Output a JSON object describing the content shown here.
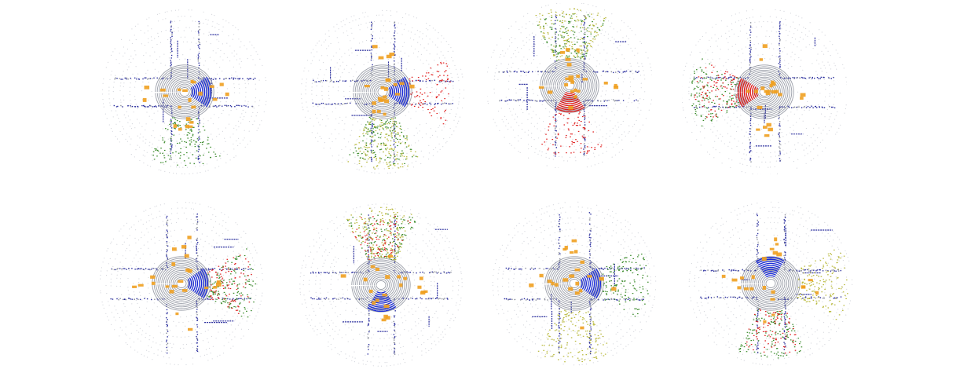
{
  "figure": {
    "palette": {
      "ground": "#b8bcc4",
      "ring": "#8a8e9a",
      "building": "#2b2f9e",
      "road_edge": "#3a3fc0",
      "vegetation": "#3a8a2a",
      "terrain": "#b8b83a",
      "vehicle": "#f0a020",
      "object": "#e02020"
    },
    "scans": [
      {
        "id": "scan-1",
        "accent": "blue",
        "accent_side": "east",
        "cross": true,
        "vegetation": "south",
        "terrain": "none",
        "red": "none"
      },
      {
        "id": "scan-2",
        "accent": "blue",
        "accent_side": "east",
        "cross": true,
        "vegetation": "south",
        "terrain": "south",
        "red": "east"
      },
      {
        "id": "scan-3",
        "accent": "red",
        "accent_side": "south",
        "cross": true,
        "vegetation": "north",
        "terrain": "north",
        "red": "south"
      },
      {
        "id": "scan-4",
        "accent": "red",
        "accent_side": "west",
        "cross": true,
        "vegetation": "west",
        "terrain": "none",
        "red": "west"
      },
      {
        "id": "scan-5",
        "accent": "blue",
        "accent_side": "east",
        "cross": true,
        "vegetation": "east",
        "terrain": "none",
        "red": "east"
      },
      {
        "id": "scan-6",
        "accent": "blue",
        "accent_side": "south",
        "cross": true,
        "vegetation": "north",
        "terrain": "north",
        "red": "north"
      },
      {
        "id": "scan-7",
        "accent": "blue",
        "accent_side": "east",
        "cross": true,
        "vegetation": "east",
        "terrain": "south",
        "red": "none"
      },
      {
        "id": "scan-8",
        "accent": "blue",
        "accent_side": "north",
        "cross": true,
        "vegetation": "south",
        "terrain": "east",
        "red": "south"
      }
    ]
  }
}
